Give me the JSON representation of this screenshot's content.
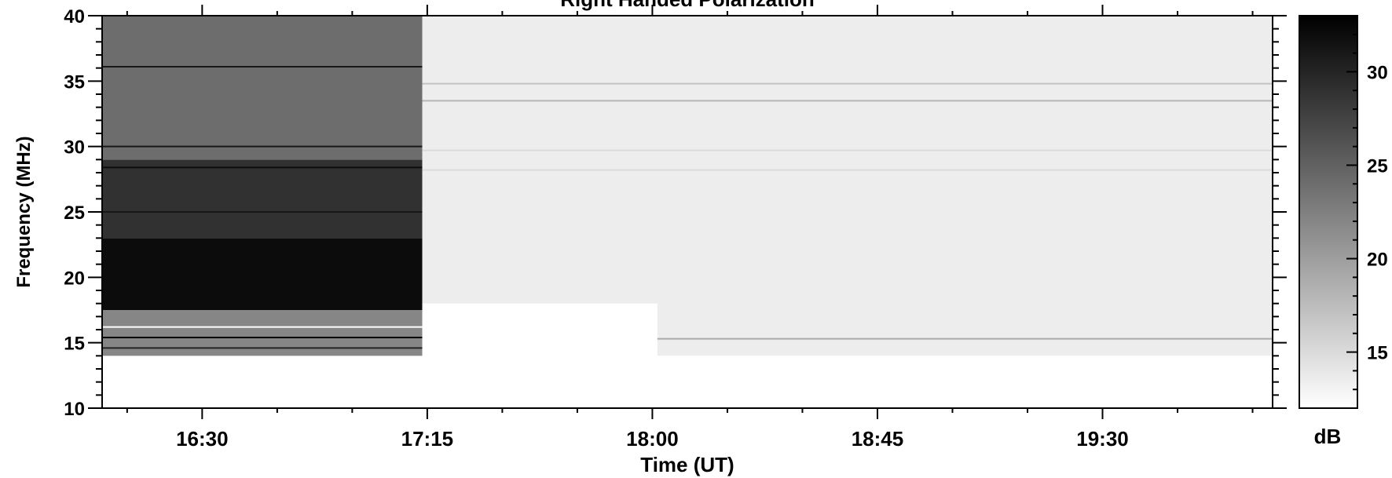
{
  "chart_data": {
    "type": "heatmap",
    "title": "Right Handed Polarization",
    "xlabel": "Time (UT)",
    "ylabel": "Frequency (MHz)",
    "x_tick_labels": [
      "16:30",
      "17:15",
      "18:00",
      "18:45",
      "19:30"
    ],
    "x_tick_values_min": [
      990,
      1035,
      1080,
      1125,
      1170
    ],
    "xlim_min": [
      970,
      1204
    ],
    "ylim": [
      10,
      40
    ],
    "y_ticks": [
      10,
      15,
      20,
      25,
      30,
      35,
      40
    ],
    "colorbar": {
      "label": "dB",
      "range": [
        12,
        33
      ],
      "ticks": [
        15,
        20,
        25,
        30
      ],
      "colormap": "white-to-black"
    },
    "regions": [
      {
        "t_start": 970,
        "t_end": 1034,
        "f_low": 10,
        "f_high": 14,
        "level": 12
      },
      {
        "t_start": 970,
        "t_end": 1034,
        "f_low": 14,
        "f_high": 17.5,
        "level": 22
      },
      {
        "t_start": 970,
        "t_end": 1034,
        "f_low": 17.5,
        "f_high": 23,
        "level": 32
      },
      {
        "t_start": 970,
        "t_end": 1034,
        "f_low": 23,
        "f_high": 29,
        "level": 29
      },
      {
        "t_start": 970,
        "t_end": 1034,
        "f_low": 29,
        "f_high": 40,
        "level": 24
      },
      {
        "t_start": 1034,
        "t_end": 1204,
        "f_low": 14,
        "f_high": 40,
        "level": 13.5
      },
      {
        "t_start": 1034,
        "t_end": 1204,
        "f_low": 10,
        "f_high": 14,
        "level": 12
      },
      {
        "t_start": 1034,
        "t_end": 1081,
        "f_low": 14,
        "f_high": 18,
        "level": 12
      }
    ],
    "lines": [
      {
        "t_start": 1034,
        "t_end": 1204,
        "f": 34.8,
        "level": 17
      },
      {
        "t_start": 1034,
        "t_end": 1204,
        "f": 33.5,
        "level": 18
      },
      {
        "t_start": 1034,
        "t_end": 1204,
        "f": 28.2,
        "level": 15
      },
      {
        "t_start": 1034,
        "t_end": 1204,
        "f": 29.7,
        "level": 15
      },
      {
        "t_start": 1081,
        "t_end": 1204,
        "f": 15.3,
        "level": 19
      },
      {
        "t_start": 970,
        "t_end": 1034,
        "f": 36.1,
        "level": 31
      },
      {
        "t_start": 970,
        "t_end": 1034,
        "f": 30.0,
        "level": 31
      },
      {
        "t_start": 970,
        "t_end": 1034,
        "f": 28.4,
        "level": 32
      },
      {
        "t_start": 970,
        "t_end": 1034,
        "f": 25.0,
        "level": 31
      },
      {
        "t_start": 970,
        "t_end": 1034,
        "f": 16.2,
        "level": 12
      },
      {
        "t_start": 970,
        "t_end": 1034,
        "f": 15.4,
        "level": 33
      },
      {
        "t_start": 970,
        "t_end": 1034,
        "f": 14.6,
        "level": 30
      }
    ],
    "grid": false
  }
}
